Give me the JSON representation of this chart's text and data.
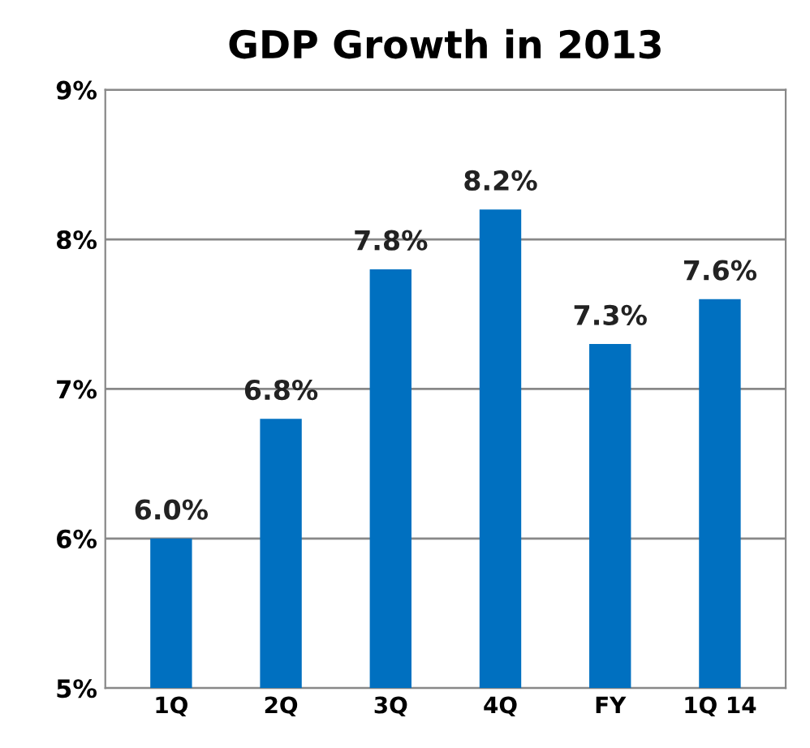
{
  "chart_data": {
    "type": "bar",
    "title": "GDP Growth in 2013",
    "categories": [
      "1Q",
      "2Q",
      "3Q",
      "4Q",
      "FY",
      "1Q 14"
    ],
    "values": [
      6.0,
      6.8,
      7.8,
      8.2,
      7.3,
      7.6
    ],
    "value_labels": [
      "6.0%",
      "6.8%",
      "7.8%",
      "8.2%",
      "7.3%",
      "7.6%"
    ],
    "color": "#0070c0",
    "ylim": [
      5,
      9
    ],
    "yticks": [
      {
        "value": 5,
        "label": "5%"
      },
      {
        "value": 6,
        "label": "6%"
      },
      {
        "value": 7,
        "label": "7%"
      },
      {
        "value": 8,
        "label": "8%"
      },
      {
        "value": 9,
        "label": "9%"
      }
    ],
    "grid": "y"
  }
}
